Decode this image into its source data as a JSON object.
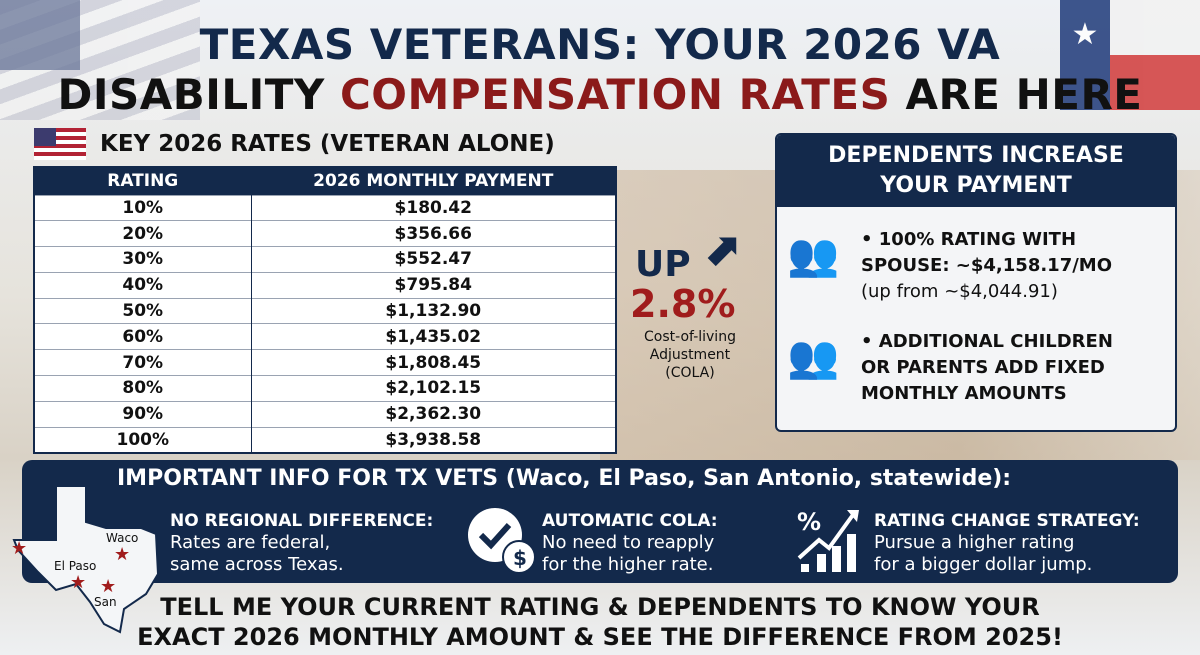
{
  "title": {
    "line1": "TEXAS VETERANS: YOUR 2026 VA",
    "line2_pre": "DISABILITY ",
    "line2_red": "COMPENSATION RATES",
    "line2_post": " ARE HERE"
  },
  "key_rates": {
    "heading": "KEY 2026 RATES (VETERAN ALONE)",
    "columns": [
      "RATING",
      "2026 MONTHLY PAYMENT"
    ],
    "rows": [
      [
        "10%",
        "$180.42"
      ],
      [
        "20%",
        "$356.66"
      ],
      [
        "30%",
        "$552.47"
      ],
      [
        "40%",
        "$795.84"
      ],
      [
        "50%",
        "$1,132.90"
      ],
      [
        "60%",
        "$1,435.02"
      ],
      [
        "70%",
        "$1,808.45"
      ],
      [
        "80%",
        "$2,102.15"
      ],
      [
        "90%",
        "$2,362.30"
      ],
      [
        "100%",
        "$3,938.58"
      ]
    ]
  },
  "cola": {
    "up": "UP",
    "percent": "2.8%",
    "label1": "Cost-of-living",
    "label2": "Adjustment",
    "label3": "(COLA)"
  },
  "dependents": {
    "heading1": "DEPENDENTS INCREASE",
    "heading2": "YOUR PAYMENT",
    "item1_line1": "• 100% RATING WITH",
    "item1_line2": "SPOUSE: ~$4,158.17/MO",
    "item1_sub": "(up from ~$4,044.91)",
    "item2_line1": "• ADDITIONAL CHILDREN",
    "item2_line2": "OR PARENTS ADD FIXED",
    "item2_line3": "MONTHLY AMOUNTS"
  },
  "info": {
    "title": "IMPORTANT INFO FOR TX VETS (Waco, El Paso,  San Antonio, statewide):",
    "map_labels": [
      "Waco",
      "El Paso",
      "San"
    ],
    "col1_head": "NO REGIONAL DIFFERENCE:",
    "col1_l1": "Rates are federal,",
    "col1_l2": "same across Texas.",
    "col2_head": "AUTOMATIC COLA:",
    "col2_l1": "No need to reapply",
    "col2_l2": "for the higher rate.",
    "col3_head": "RATING CHANGE STRATEGY:",
    "col3_l1": "Pursue a higher rating",
    "col3_l2": "for a bigger dollar jump."
  },
  "cta": {
    "line1": "TELL ME YOUR CURRENT RATING & DEPENDENTS TO KNOW YOUR",
    "line2": "EXACT 2026 MONTHLY AMOUNT & SEE THE DIFFERENCE FROM 2025!"
  },
  "colors": {
    "navy": "#13294b",
    "red": "#8b1a1a"
  }
}
